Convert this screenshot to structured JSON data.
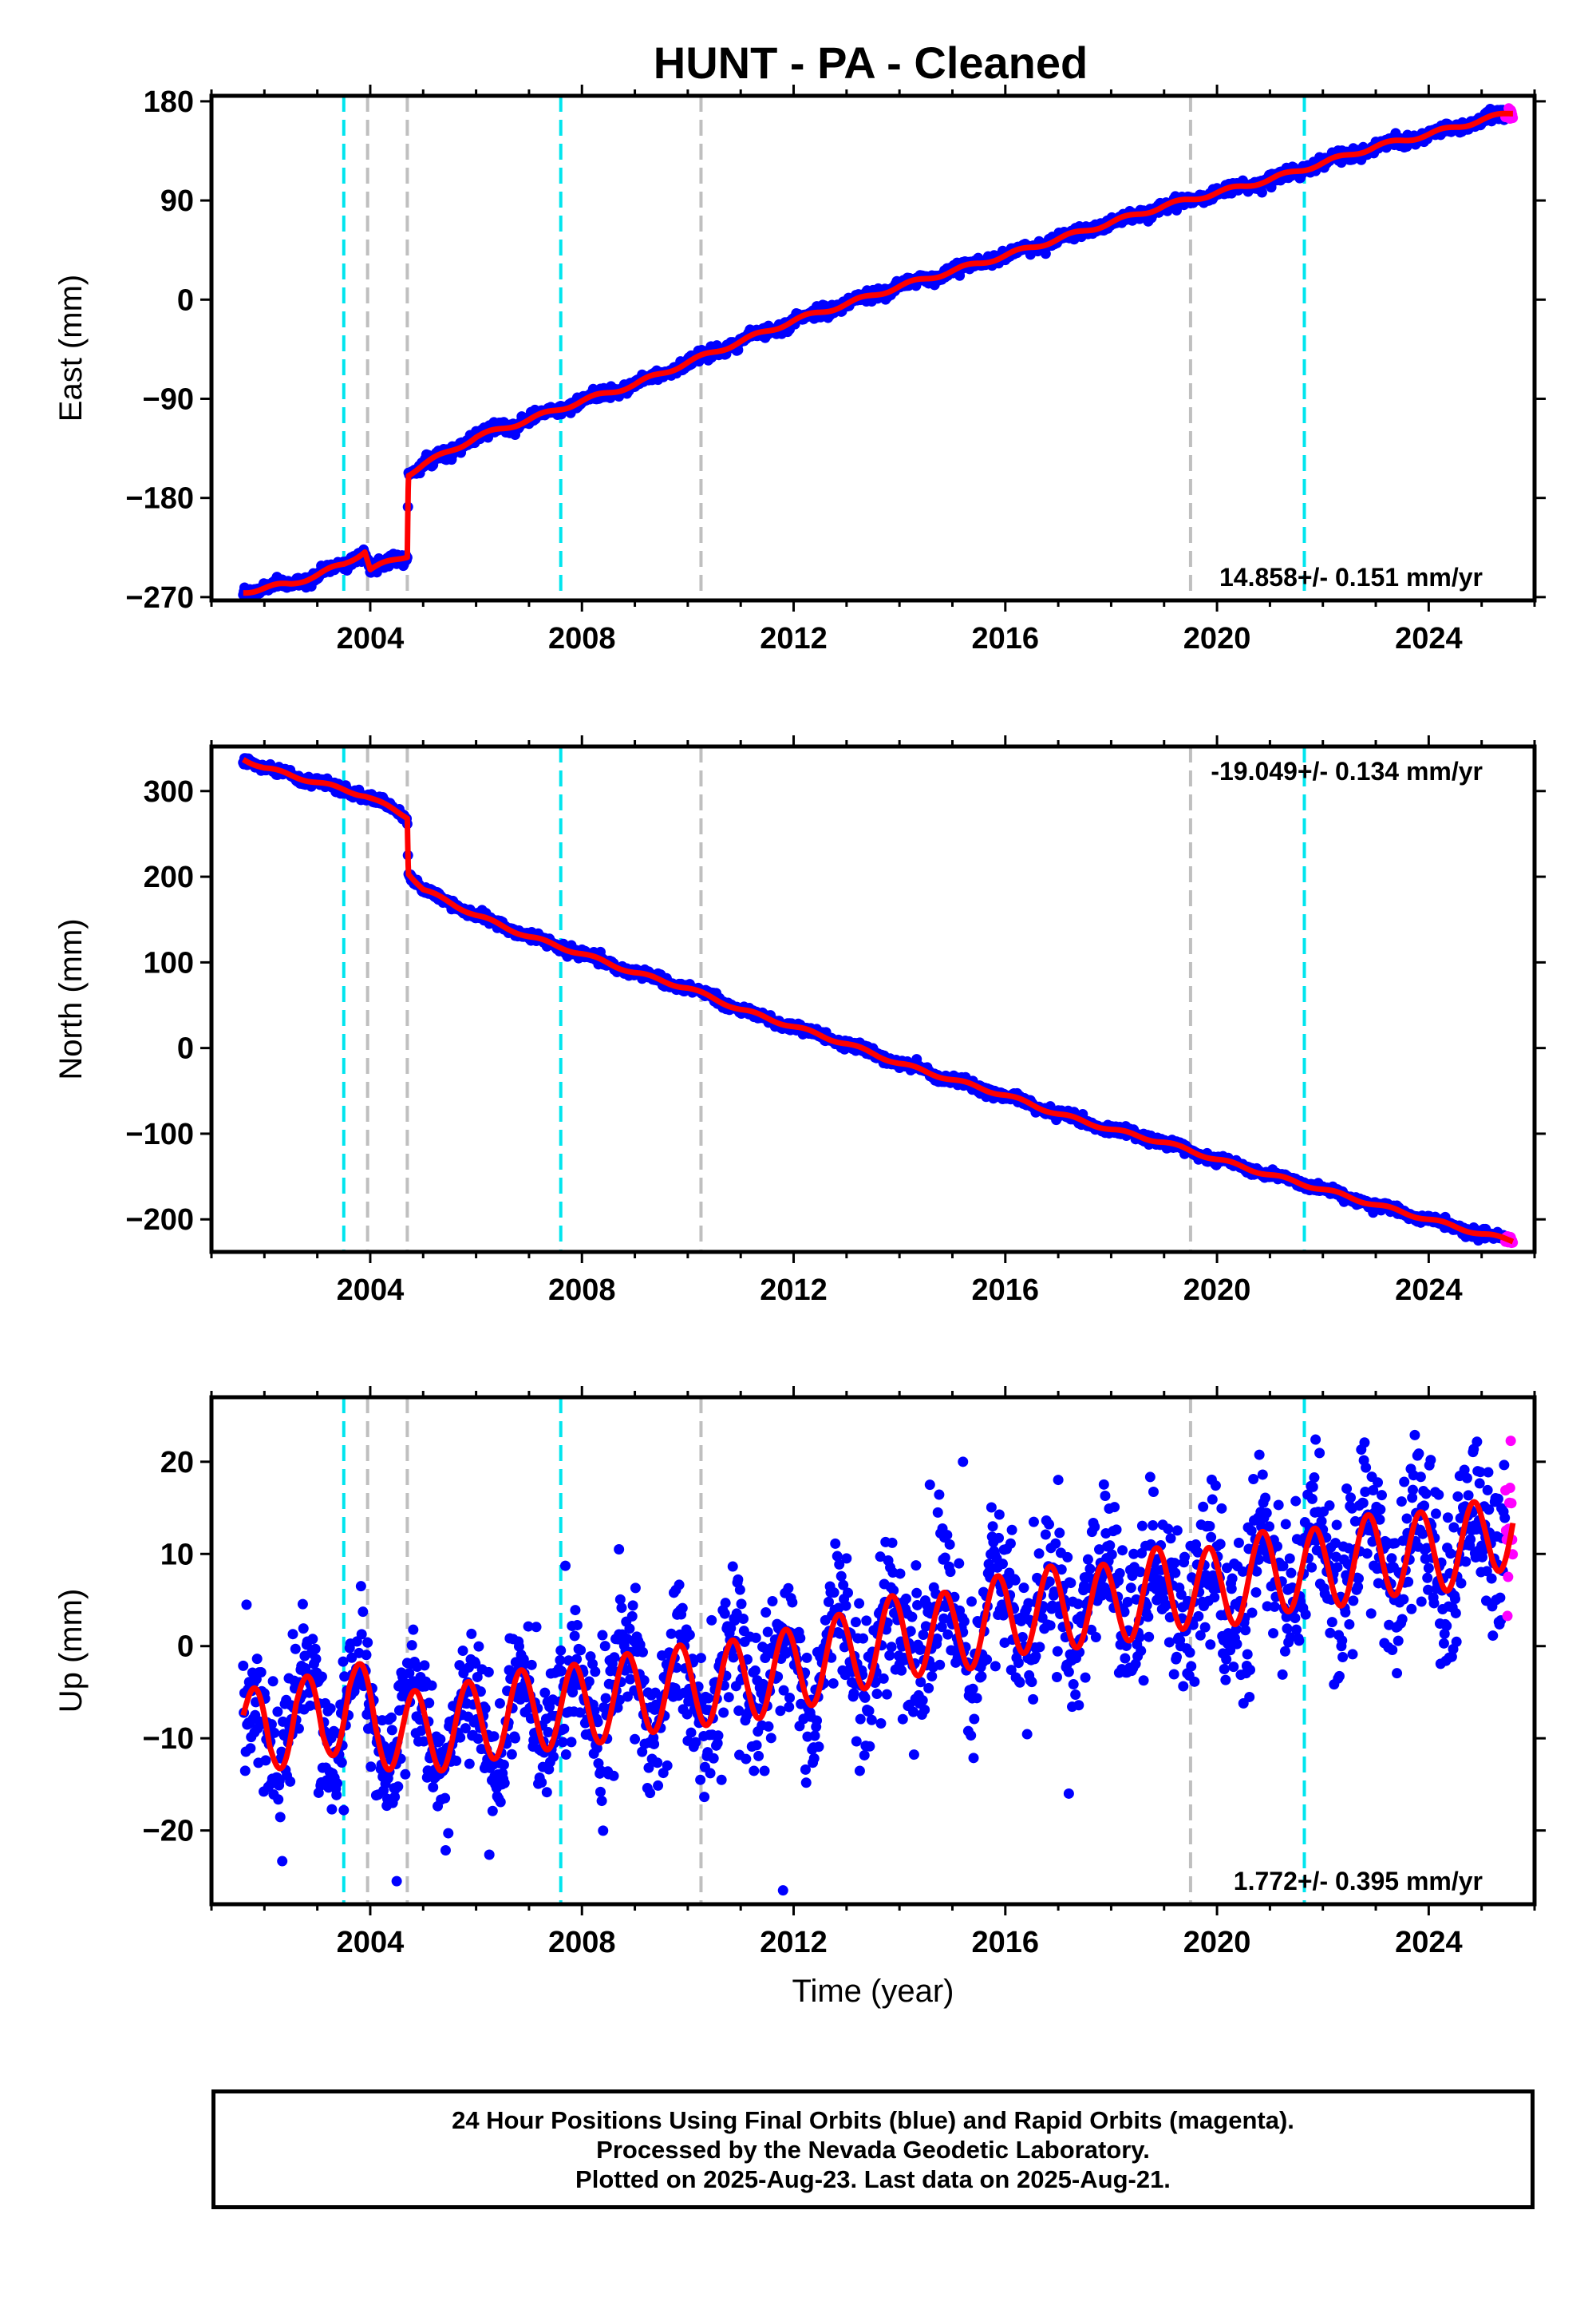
{
  "title": "HUNT  - PA - Cleaned",
  "footer": {
    "line1": "24 Hour Positions Using Final Orbits (blue) and Rapid Orbits (magenta).",
    "line2": "Processed by the Nevada Geodetic Laboratory.",
    "line3": "Plotted on 2025-Aug-23. Last data on 2025-Aug-21."
  },
  "colors": {
    "final_orbits": "#0000ff",
    "rapid_orbits": "#ff00ff",
    "model": "#ff0000",
    "equipment_change": "#00e5ee",
    "other_event": "#bfbfbf"
  },
  "chart_data": [
    {
      "type": "scatter",
      "component": "east",
      "ylabel": "East (mm)",
      "xlabel": "",
      "xlim": [
        2001.0,
        2026.0
      ],
      "ylim": [
        -273,
        185
      ],
      "xticks": [
        2004,
        2008,
        2012,
        2016,
        2020,
        2024
      ],
      "yticks": [
        180,
        90,
        0,
        -90,
        -180,
        -270
      ],
      "ytick_labels": [
        "180",
        "90",
        "0",
        "−90",
        "−180",
        "−270"
      ],
      "rate_text": "14.858+/- 0.151 mm/yr",
      "grid": false,
      "series": [
        {
          "points": [
            [
              2001.6,
              -265
            ],
            [
              2002.5,
              -258
            ],
            [
              2003.0,
              -250
            ],
            [
              2003.5,
              -240
            ],
            [
              2003.9,
              -228
            ],
            [
              2004.0,
              -245
            ],
            [
              2004.7,
              -232
            ],
            [
              2004.72,
              -158
            ],
            [
              2005.0,
              -150
            ],
            [
              2006.0,
              -125
            ],
            [
              2007.0,
              -109
            ],
            [
              2008.0,
              -92
            ],
            [
              2009.0,
              -77
            ],
            [
              2010.0,
              -57
            ],
            [
              2011.0,
              -38
            ],
            [
              2012.0,
              -19
            ],
            [
              2013.0,
              -4
            ],
            [
              2014.0,
              12
            ],
            [
              2015.0,
              26
            ],
            [
              2016.0,
              40
            ],
            [
              2017.0,
              55
            ],
            [
              2018.0,
              70
            ],
            [
              2019.0,
              85
            ],
            [
              2020.0,
              97
            ],
            [
              2021.0,
              109
            ],
            [
              2022.0,
              124
            ],
            [
              2023.0,
              139
            ],
            [
              2024.0,
              150
            ],
            [
              2025.0,
              163
            ],
            [
              2025.6,
              170
            ]
          ]
        }
      ],
      "vlines_cyan": [
        2003.5,
        2007.6,
        2021.65
      ],
      "vlines_gray": [
        2003.95,
        2004.7,
        2010.25,
        2019.5
      ]
    },
    {
      "type": "scatter",
      "component": "north",
      "ylabel": "North (mm)",
      "xlabel": "",
      "xlim": [
        2001.0,
        2026.0
      ],
      "ylim": [
        -238,
        352
      ],
      "xticks": [
        2004,
        2008,
        2012,
        2016,
        2020,
        2024
      ],
      "yticks": [
        300,
        200,
        100,
        0,
        -100,
        -200
      ],
      "ytick_labels": [
        "300",
        "200",
        "100",
        "0",
        "−100",
        "−200"
      ],
      "rate_text": "-19.049+/- 0.134 mm/yr",
      "grid": false,
      "series": [
        {
          "points": [
            [
              2001.6,
              338
            ],
            [
              2002.0,
              327
            ],
            [
              2003.0,
              310
            ],
            [
              2003.9,
              295
            ],
            [
              2004.7,
              270
            ],
            [
              2004.72,
              205
            ],
            [
              2005.0,
              185
            ],
            [
              2006.0,
              155
            ],
            [
              2007.0,
              130
            ],
            [
              2008.0,
              110
            ],
            [
              2009.0,
              88
            ],
            [
              2010.0,
              70
            ],
            [
              2011.0,
              45
            ],
            [
              2012.0,
              25
            ],
            [
              2013.0,
              5
            ],
            [
              2014.0,
              -18
            ],
            [
              2015.0,
              -37
            ],
            [
              2016.0,
              -55
            ],
            [
              2017.0,
              -77
            ],
            [
              2018.0,
              -95
            ],
            [
              2019.0,
              -110
            ],
            [
              2020.0,
              -130
            ],
            [
              2021.0,
              -148
            ],
            [
              2022.0,
              -165
            ],
            [
              2023.0,
              -183
            ],
            [
              2024.0,
              -200
            ],
            [
              2025.0,
              -217
            ],
            [
              2025.6,
              -225
            ]
          ]
        }
      ],
      "vlines_cyan": [
        2003.5,
        2007.6,
        2021.65
      ],
      "vlines_gray": [
        2003.95,
        2004.7,
        2010.25,
        2019.5
      ]
    },
    {
      "type": "scatter",
      "component": "up",
      "ylabel": "Up (mm)",
      "xlabel": "Time (year)",
      "xlim": [
        2001.0,
        2026.0
      ],
      "ylim": [
        -28,
        27
      ],
      "xticks": [
        2004,
        2008,
        2012,
        2016,
        2020,
        2024
      ],
      "yticks": [
        20,
        10,
        0,
        -10,
        -20
      ],
      "ytick_labels": [
        "20",
        "10",
        "0",
        "−10",
        "−20"
      ],
      "rate_text": "1.772+/- 0.395 mm/yr",
      "grid": false,
      "model": {
        "start": 2001.6,
        "end": 2025.6,
        "offset": -8.5,
        "trend": 0.8,
        "seasonal_amplitude": 4.5,
        "phase_year": 2001.85
      },
      "series": [
        {
          "points": [
            [
              2001.6,
              -6
            ],
            [
              2002.1,
              -15
            ],
            [
              2002.6,
              -4
            ],
            [
              2003.1,
              -13
            ],
            [
              2003.6,
              -1
            ],
            [
              2004.1,
              -12
            ],
            [
              2005.0,
              -15
            ],
            [
              2006.0,
              -13
            ],
            [
              2007.0,
              -11
            ],
            [
              2008.0,
              -11
            ],
            [
              2009.0,
              -9
            ],
            [
              2010.0,
              -8
            ],
            [
              2011.0,
              -8
            ],
            [
              2012.0,
              -6
            ],
            [
              2013.0,
              -3
            ],
            [
              2014.0,
              1
            ],
            [
              2015.0,
              0
            ],
            [
              2016.0,
              4
            ],
            [
              2017.0,
              5
            ],
            [
              2018.0,
              4
            ],
            [
              2019.0,
              8
            ],
            [
              2020.0,
              6
            ],
            [
              2021.0,
              10
            ],
            [
              2022.0,
              9
            ],
            [
              2023.0,
              12
            ],
            [
              2024.0,
              11
            ],
            [
              2025.0,
              13
            ],
            [
              2025.6,
              18
            ]
          ]
        }
      ],
      "vlines_cyan": [
        2003.5,
        2007.6,
        2021.65
      ],
      "vlines_gray": [
        2003.95,
        2004.7,
        2010.25,
        2019.5
      ]
    }
  ]
}
